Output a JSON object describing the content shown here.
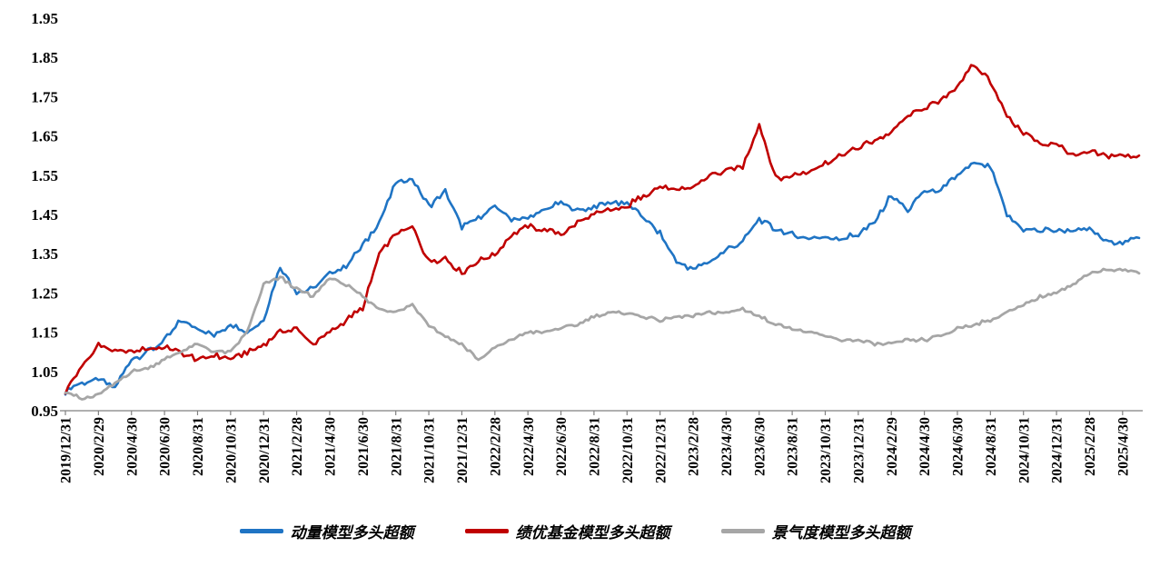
{
  "chart_data": {
    "type": "line",
    "title": "",
    "xlabel": "",
    "ylabel": "",
    "grid": false,
    "legend_position": "bottom",
    "ylim": [
      0.95,
      1.95
    ],
    "y_tick_labels": [
      "0.95",
      "1.05",
      "1.15",
      "1.25",
      "1.35",
      "1.45",
      "1.55",
      "1.65",
      "1.75",
      "1.85",
      "1.95"
    ],
    "x_label_interval_months": 2,
    "x_overshoot_months": 1,
    "x_labels": [
      "2019/12/31",
      "2020/2/29",
      "2020/4/30",
      "2020/6/30",
      "2020/8/31",
      "2020/10/31",
      "2020/12/31",
      "2021/2/28",
      "2021/4/30",
      "2021/6/30",
      "2021/8/31",
      "2021/10/31",
      "2021/12/31",
      "2022/2/28",
      "2022/4/30",
      "2022/6/30",
      "2022/8/31",
      "2022/10/31",
      "2022/12/31",
      "2023/2/28",
      "2023/4/30",
      "2023/6/30",
      "2023/8/31",
      "2023/10/31",
      "2023/12/31",
      "2024/2/29",
      "2024/4/30",
      "2024/6/30",
      "2024/8/31",
      "2024/10/31",
      "2024/12/31",
      "2025/2/28",
      "2025/4/30"
    ],
    "series": [
      {
        "key": "momentum",
        "name": "动量模型多头超额",
        "color": "#1F74C4",
        "line_width": 2.6,
        "noise_amp": 0.011,
        "values": [
          1.0,
          1.02,
          1.03,
          1.01,
          1.08,
          1.1,
          1.13,
          1.18,
          1.16,
          1.14,
          1.17,
          1.15,
          1.18,
          1.32,
          1.25,
          1.26,
          1.3,
          1.32,
          1.37,
          1.43,
          1.53,
          1.54,
          1.47,
          1.51,
          1.42,
          1.44,
          1.47,
          1.44,
          1.44,
          1.46,
          1.48,
          1.46,
          1.47,
          1.48,
          1.48,
          1.44,
          1.4,
          1.33,
          1.31,
          1.33,
          1.36,
          1.38,
          1.44,
          1.41,
          1.4,
          1.39,
          1.39,
          1.39,
          1.4,
          1.43,
          1.5,
          1.46,
          1.51,
          1.51,
          1.55,
          1.58,
          1.57,
          1.45,
          1.41,
          1.41,
          1.41,
          1.41,
          1.41,
          1.38,
          1.38,
          1.39
        ]
      },
      {
        "key": "top-fund",
        "name": "绩优基金模型多头超额",
        "color": "#C00000",
        "line_width": 2.6,
        "noise_amp": 0.012,
        "values": [
          1.0,
          1.06,
          1.12,
          1.1,
          1.1,
          1.11,
          1.11,
          1.1,
          1.08,
          1.09,
          1.08,
          1.1,
          1.12,
          1.15,
          1.16,
          1.12,
          1.15,
          1.18,
          1.21,
          1.35,
          1.4,
          1.42,
          1.33,
          1.34,
          1.3,
          1.33,
          1.35,
          1.4,
          1.42,
          1.41,
          1.4,
          1.43,
          1.45,
          1.46,
          1.47,
          1.5,
          1.52,
          1.51,
          1.52,
          1.55,
          1.56,
          1.57,
          1.68,
          1.54,
          1.55,
          1.56,
          1.58,
          1.6,
          1.62,
          1.64,
          1.66,
          1.7,
          1.72,
          1.74,
          1.78,
          1.83,
          1.79,
          1.7,
          1.66,
          1.63,
          1.63,
          1.6,
          1.61,
          1.6,
          1.6,
          1.6
        ]
      },
      {
        "key": "prosperity",
        "name": "景气度模型多头超额",
        "color": "#A6A6A6",
        "line_width": 2.8,
        "noise_amp": 0.007,
        "values": [
          1.0,
          0.98,
          0.99,
          1.02,
          1.05,
          1.06,
          1.08,
          1.1,
          1.12,
          1.1,
          1.1,
          1.15,
          1.27,
          1.29,
          1.26,
          1.24,
          1.29,
          1.27,
          1.24,
          1.21,
          1.2,
          1.22,
          1.17,
          1.14,
          1.12,
          1.08,
          1.11,
          1.13,
          1.15,
          1.15,
          1.16,
          1.17,
          1.19,
          1.2,
          1.2,
          1.19,
          1.18,
          1.19,
          1.19,
          1.2,
          1.2,
          1.21,
          1.19,
          1.17,
          1.16,
          1.15,
          1.14,
          1.13,
          1.13,
          1.12,
          1.12,
          1.13,
          1.13,
          1.14,
          1.16,
          1.17,
          1.18,
          1.2,
          1.22,
          1.24,
          1.25,
          1.27,
          1.3,
          1.31,
          1.31,
          1.3
        ]
      }
    ],
    "axis_color": "#808080"
  }
}
